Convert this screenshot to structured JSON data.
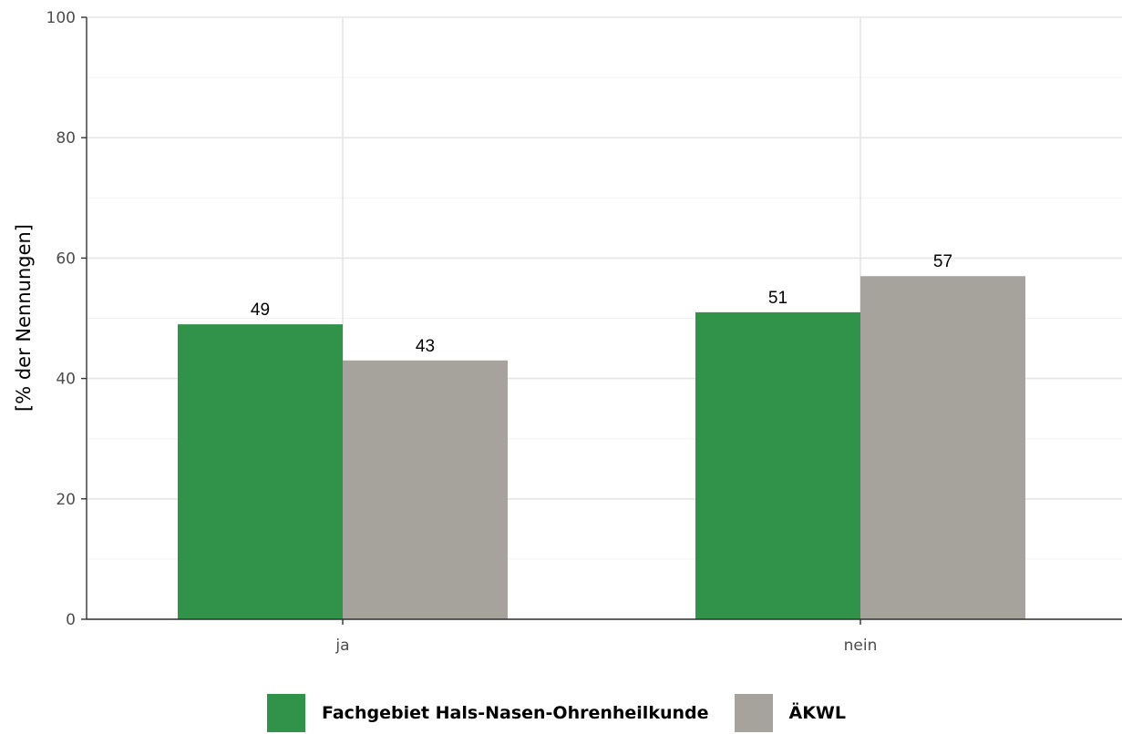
{
  "chart_data": {
    "type": "bar",
    "categories": [
      "ja",
      "nein"
    ],
    "series": [
      {
        "name": "Fachgebiet Hals-Nasen-Ohrenheilkunde",
        "color": "#31924a",
        "values": [
          49,
          51
        ]
      },
      {
        "name": "ÄKWL",
        "color": "#a6a39c",
        "values": [
          43,
          57
        ]
      }
    ],
    "data_labels": [
      [
        "49",
        "51"
      ],
      [
        "43",
        "57"
      ]
    ],
    "ylabel": "[% der Nennungen]",
    "xlabel": "",
    "ylim": [
      0,
      100
    ],
    "yticks": [
      0,
      20,
      40,
      60,
      80,
      100
    ],
    "grid": true,
    "legend_position": "bottom"
  }
}
